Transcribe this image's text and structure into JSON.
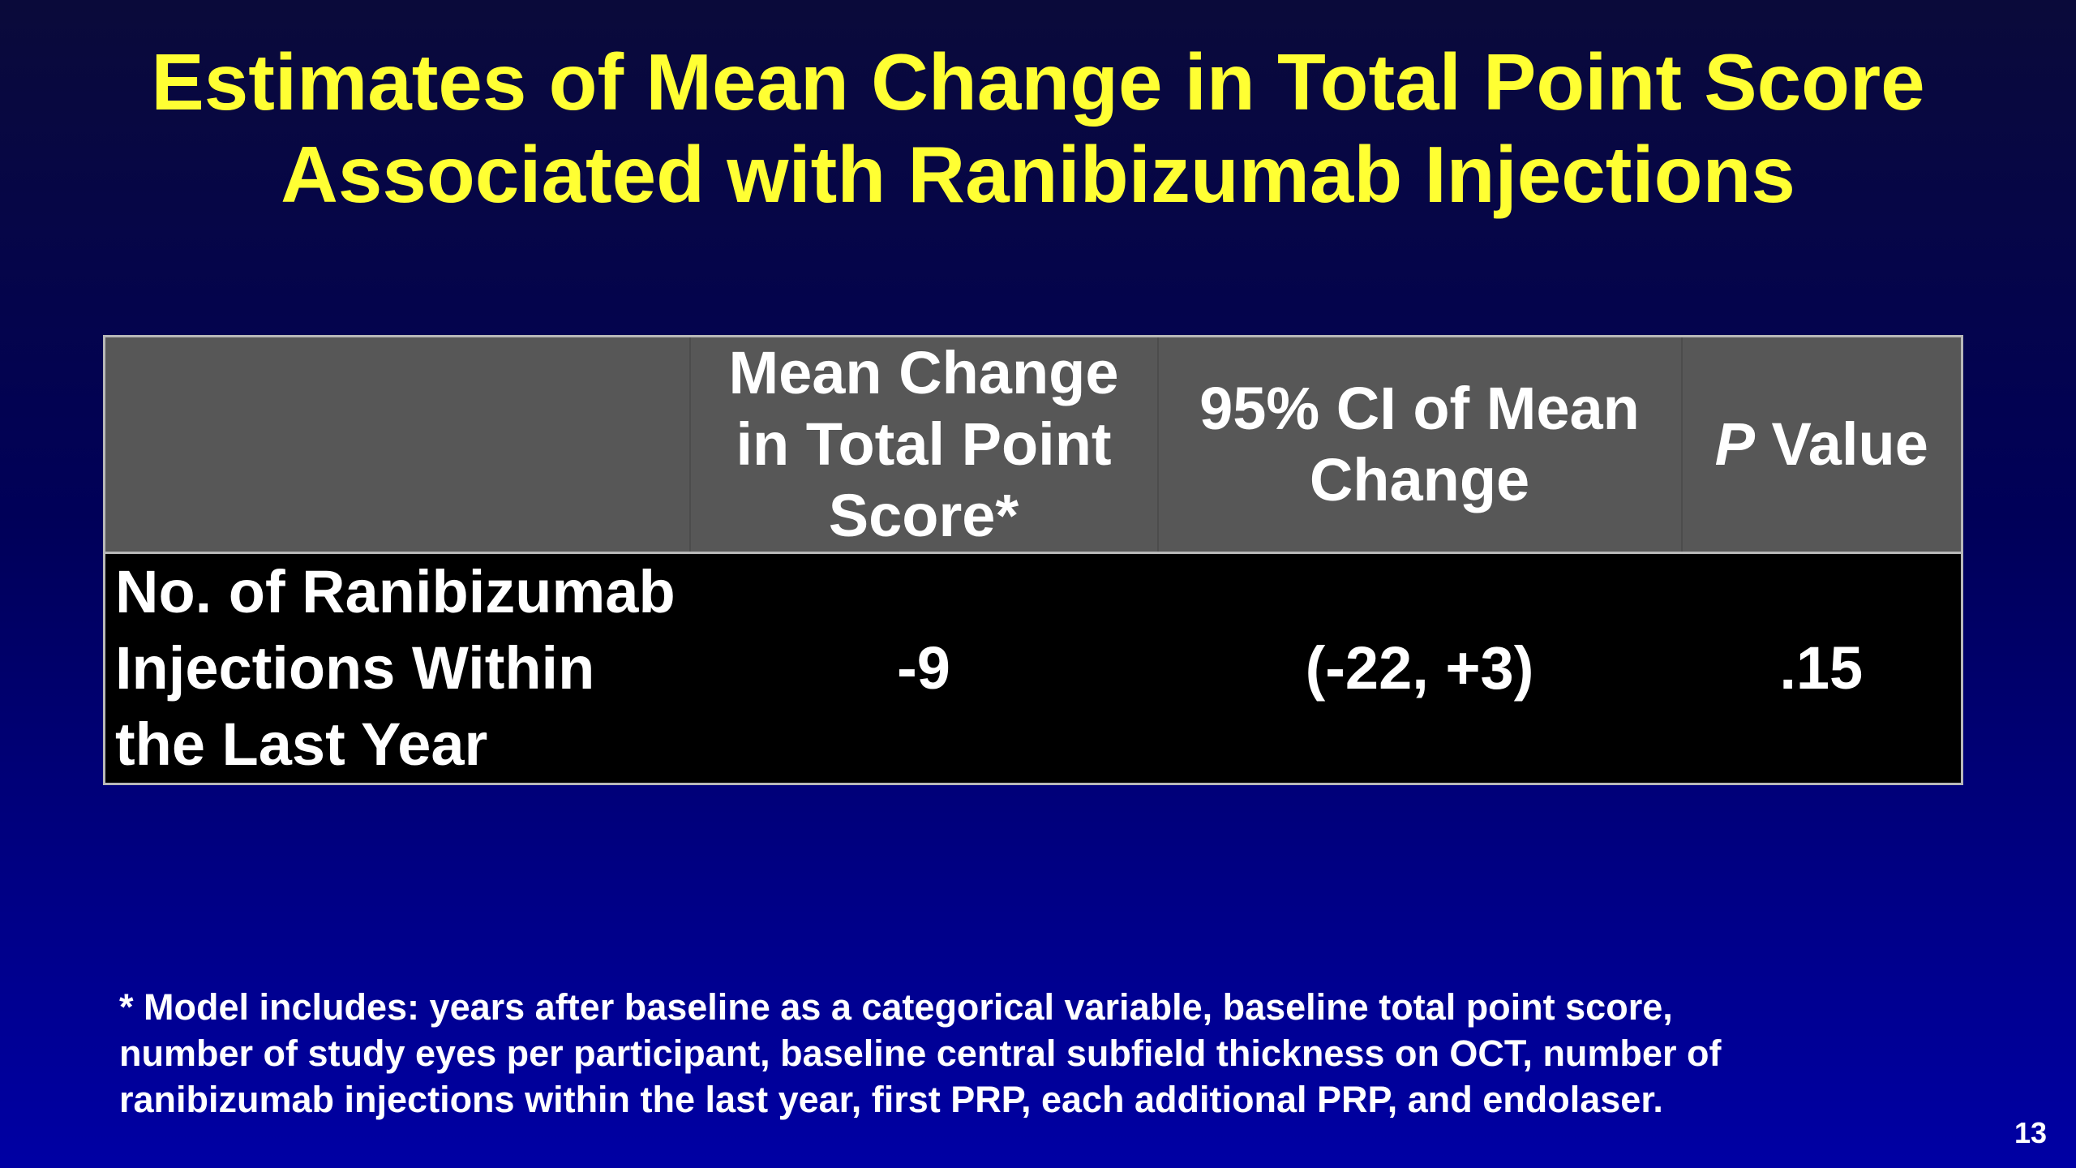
{
  "slide": {
    "title_lines": [
      "Estimates of Mean Change in Total Point Score",
      "Associated with Ranibizumab Injections"
    ],
    "page_number": "13"
  },
  "table": {
    "header": {
      "col1": "",
      "col2_lines": [
        "Mean Change",
        "in Total Point",
        "Score*"
      ],
      "col3_lines": [
        "95% CI of Mean",
        "Change"
      ],
      "col4_italic": "P",
      "col4_rest": " Value"
    },
    "row": {
      "label_lines": [
        "No. of Ranibizumab",
        "Injections Within",
        "the Last Year"
      ],
      "mean_change": "-9",
      "ci": "(-22, +3)",
      "p_value": ".15"
    }
  },
  "footnote_lines": [
    "* Model includes: years after baseline as a categorical variable, baseline total point score,",
    "number of study eyes per participant, baseline central subfield thickness on OCT, number of",
    "ranibizumab injections within the last year, first PRP, each additional PRP, and endolaser."
  ],
  "colors": {
    "title": "#ffff33",
    "header_bg": "#575757",
    "row_bg": "#000000",
    "border": "#b8b8b8",
    "background_top": "#0a0a3a",
    "background_bottom": "#0000a4"
  }
}
